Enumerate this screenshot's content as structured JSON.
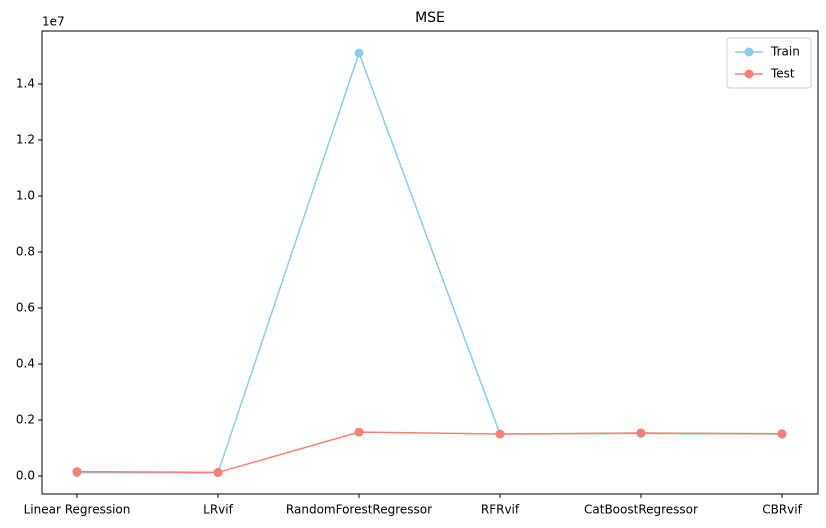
{
  "chart_data": {
    "type": "line",
    "title": "MSE",
    "offset_label": "1e7",
    "categories": [
      "Linear Regression",
      "LRvif",
      "RandomForestRegressor",
      "RFRvif",
      "CatBoostRegressor",
      "CBRvif"
    ],
    "series": [
      {
        "name": "Train",
        "color": "#87ceeb",
        "values": [
          0.012,
          0.012,
          1.51,
          0.15,
          0.152,
          0.15
        ]
      },
      {
        "name": "Test",
        "color": "#fa8072",
        "values": [
          0.016,
          0.013,
          0.157,
          0.15,
          0.154,
          0.151
        ]
      }
    ],
    "ylim": [
      -0.064,
      1.589
    ],
    "yticks": [
      {
        "value": 0,
        "label": "0.0"
      },
      {
        "value": 0.2,
        "label": "0.2"
      },
      {
        "value": 0.4,
        "label": "0.4"
      },
      {
        "value": 0.6,
        "label": "0.6"
      },
      {
        "value": 0.8,
        "label": "0.8"
      },
      {
        "value": 1.0,
        "label": "1.0"
      },
      {
        "value": 1.2,
        "label": "1.2"
      },
      {
        "value": 1.4,
        "label": "1.4"
      }
    ],
    "legend": "upper right",
    "grid": false
  }
}
